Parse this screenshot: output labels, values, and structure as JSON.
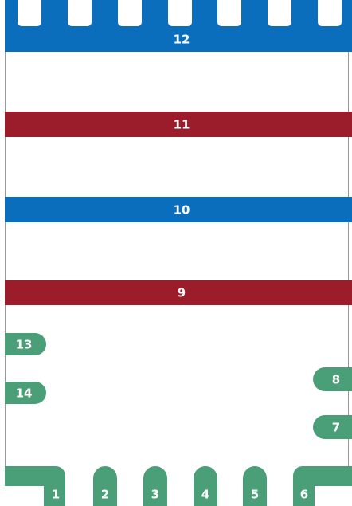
{
  "bands": [
    {
      "label": "12"
    },
    {
      "label": "11"
    },
    {
      "label": "10"
    },
    {
      "label": "9"
    }
  ],
  "side_pins": [
    {
      "label": "13"
    },
    {
      "label": "14"
    },
    {
      "label": "8"
    },
    {
      "label": "7"
    }
  ],
  "bottom_pins": [
    {
      "label": "1"
    },
    {
      "label": "2"
    },
    {
      "label": "3"
    },
    {
      "label": "4"
    },
    {
      "label": "5"
    },
    {
      "label": "6"
    }
  ]
}
